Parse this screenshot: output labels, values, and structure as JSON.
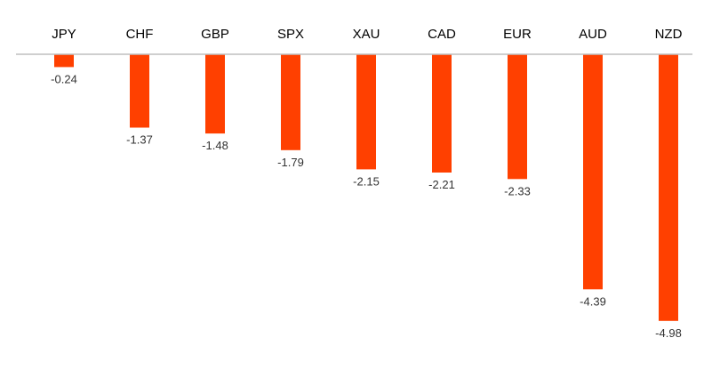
{
  "chart_data": {
    "type": "bar",
    "title": "",
    "xlabel": "",
    "ylabel": "",
    "categories": [
      "JPY",
      "CHF",
      "GBP",
      "SPX",
      "XAU",
      "CAD",
      "EUR",
      "AUD",
      "NZD"
    ],
    "values": [
      -0.24,
      -1.37,
      -1.48,
      -1.79,
      -2.15,
      -2.21,
      -2.33,
      -4.39,
      -4.98
    ],
    "value_labels": [
      "-0.24",
      "-1.37",
      "-1.48",
      "-1.79",
      "-2.15",
      "-2.21",
      "-2.33",
      "-4.39",
      "-4.98"
    ],
    "ylim": [
      -5,
      0
    ],
    "grid": false,
    "legend": "none",
    "bar_color": "#FF4000",
    "axis_color": "#BFBFBF"
  }
}
